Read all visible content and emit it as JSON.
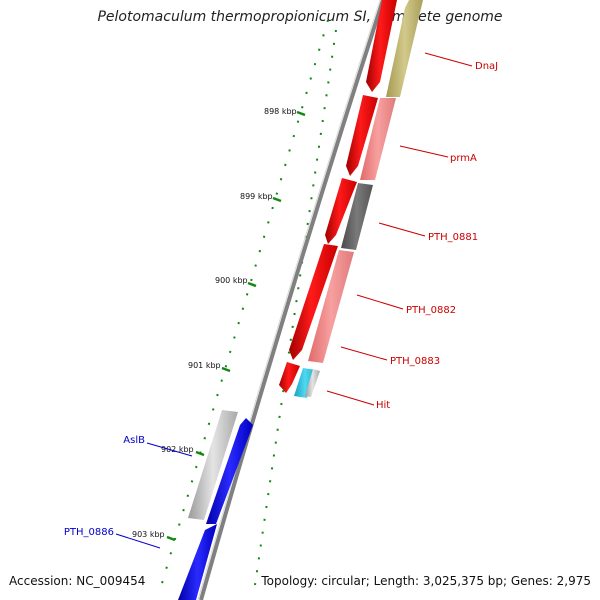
{
  "title": "Pelotomaculum thermopropionicum SI, complete genome",
  "accession_label": "Accession: NC_009454",
  "topology_label": "Topology: circular; Length: 3,025,375 bp; Genes: 2,975",
  "colors": {
    "forward_strand_gene": "#ff0000",
    "reverse_strand_gene_pink": "#f08080",
    "blue_gene": "#0000ee",
    "gene_label_red": "#cc0000",
    "gene_label_blue": "#0000cc",
    "tick_green": "#118811",
    "backbone": "#808080"
  },
  "ticks": [
    {
      "label": "898 kbp"
    },
    {
      "label": "899 kbp"
    },
    {
      "label": "900 kbp"
    },
    {
      "label": "901 kbp"
    },
    {
      "label": "902 kbp"
    },
    {
      "label": "903 kbp"
    }
  ],
  "gene_labels": [
    {
      "text": "DnaJ",
      "color": "red"
    },
    {
      "text": "prmA",
      "color": "red"
    },
    {
      "text": "PTH_0881",
      "color": "red"
    },
    {
      "text": "PTH_0882",
      "color": "red"
    },
    {
      "text": "PTH_0883",
      "color": "red"
    },
    {
      "text": "Hit",
      "color": "red"
    },
    {
      "text": "AslB",
      "color": "blue"
    },
    {
      "text": "PTH_0886",
      "color": "blue"
    }
  ]
}
